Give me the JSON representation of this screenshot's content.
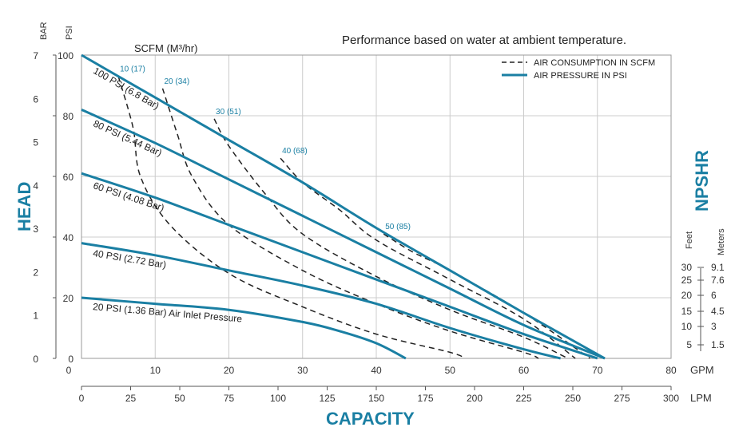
{
  "chart_data": {
    "type": "line",
    "title": "Performance based on water at ambient temperature.",
    "subtitle": "SCFM (M³/hr)",
    "colors": {
      "pressure": "#1a7fa3",
      "air": "#222222",
      "axis_title": "#1a7fa3",
      "grid": "#cccccc"
    },
    "axes": {
      "head_psi": {
        "unit": "PSI",
        "range": [
          0,
          100
        ],
        "ticks": [
          0,
          20,
          40,
          60,
          80,
          100
        ]
      },
      "head_bar": {
        "unit": "BAR",
        "range": [
          0,
          7
        ],
        "ticks": [
          0,
          1,
          2,
          3,
          4,
          5,
          6,
          7
        ]
      },
      "gpm": {
        "unit": "GPM",
        "range": [
          0,
          80
        ],
        "ticks": [
          0,
          10,
          20,
          30,
          40,
          50,
          60,
          70,
          80
        ]
      },
      "lpm": {
        "unit": "LPM",
        "range": [
          0,
          300
        ],
        "ticks": [
          0,
          25,
          50,
          75,
          100,
          125,
          150,
          175,
          200,
          225,
          250,
          275,
          300
        ]
      },
      "head_label": "HEAD",
      "capacity_label": "CAPACITY",
      "npshr": {
        "label": "NPSHR",
        "feet_label": "Feet",
        "meters_label": "Meters",
        "feet_ticks": [
          30,
          25,
          20,
          15,
          10,
          5
        ],
        "meters_ticks": [
          9.1,
          7.6,
          6,
          4.5,
          3,
          1.5
        ]
      }
    },
    "legend": {
      "position": "top-right",
      "entries": [
        {
          "label": "AIR CONSUMPTION IN SCFM",
          "style": "dashed"
        },
        {
          "label": "AIR PRESSURE IN PSI",
          "style": "solid"
        }
      ]
    },
    "pressure_series": [
      {
        "label": "100 PSI (6.8 Bar)",
        "points": [
          [
            0,
            100
          ],
          [
            10,
            86
          ],
          [
            20,
            72
          ],
          [
            30,
            58
          ],
          [
            40,
            43
          ],
          [
            50,
            29
          ],
          [
            60,
            15
          ],
          [
            71,
            0
          ]
        ]
      },
      {
        "label": "80 PSI (5.44 Bar)",
        "points": [
          [
            0,
            82
          ],
          [
            10,
            71
          ],
          [
            20,
            59
          ],
          [
            30,
            47
          ],
          [
            40,
            35
          ],
          [
            50,
            23
          ],
          [
            60,
            11
          ],
          [
            71,
            0
          ]
        ]
      },
      {
        "label": "60 PSI (4.08 Bar)",
        "points": [
          [
            0,
            61
          ],
          [
            10,
            53
          ],
          [
            20,
            44
          ],
          [
            30,
            35
          ],
          [
            40,
            26
          ],
          [
            50,
            17
          ],
          [
            60,
            8
          ],
          [
            70,
            0
          ]
        ]
      },
      {
        "label": "40 PSI (2.72 Bar)",
        "points": [
          [
            0,
            38
          ],
          [
            10,
            34
          ],
          [
            20,
            29
          ],
          [
            30,
            24
          ],
          [
            40,
            18
          ],
          [
            50,
            10
          ],
          [
            60,
            3
          ],
          [
            65,
            0
          ]
        ]
      },
      {
        "label": "20 PSI (1.36 Bar) Air Inlet Pressure",
        "points": [
          [
            0,
            20
          ],
          [
            10,
            18
          ],
          [
            20,
            16
          ],
          [
            30,
            12
          ],
          [
            35,
            9
          ],
          [
            40,
            5
          ],
          [
            44,
            0
          ]
        ]
      }
    ],
    "air_series": [
      {
        "label": "10 (17)",
        "points": [
          [
            5,
            93
          ],
          [
            7,
            76
          ],
          [
            8,
            60
          ],
          [
            12,
            44
          ],
          [
            20,
            28
          ],
          [
            30,
            17
          ],
          [
            40,
            8
          ],
          [
            50,
            2
          ],
          [
            52,
            0
          ]
        ]
      },
      {
        "label": "20 (34)",
        "points": [
          [
            11,
            89
          ],
          [
            13,
            74
          ],
          [
            15,
            60
          ],
          [
            20,
            44
          ],
          [
            30,
            29
          ],
          [
            40,
            18
          ],
          [
            50,
            9
          ],
          [
            60,
            2
          ],
          [
            62,
            0
          ]
        ]
      },
      {
        "label": "30 (51)",
        "points": [
          [
            18,
            79
          ],
          [
            20,
            70
          ],
          [
            25,
            54
          ],
          [
            30,
            41
          ],
          [
            40,
            27
          ],
          [
            50,
            16
          ],
          [
            60,
            7
          ],
          [
            66,
            0
          ]
        ]
      },
      {
        "label": "40 (68)",
        "points": [
          [
            27,
            66
          ],
          [
            30,
            58
          ],
          [
            35,
            49
          ],
          [
            40,
            39
          ],
          [
            50,
            26
          ],
          [
            60,
            13
          ],
          [
            67,
            0
          ]
        ]
      },
      {
        "label": "50 (85)",
        "points": [
          [
            41,
            41
          ],
          [
            45,
            35
          ],
          [
            50,
            29
          ],
          [
            60,
            15
          ],
          [
            69,
            0
          ]
        ]
      }
    ]
  }
}
